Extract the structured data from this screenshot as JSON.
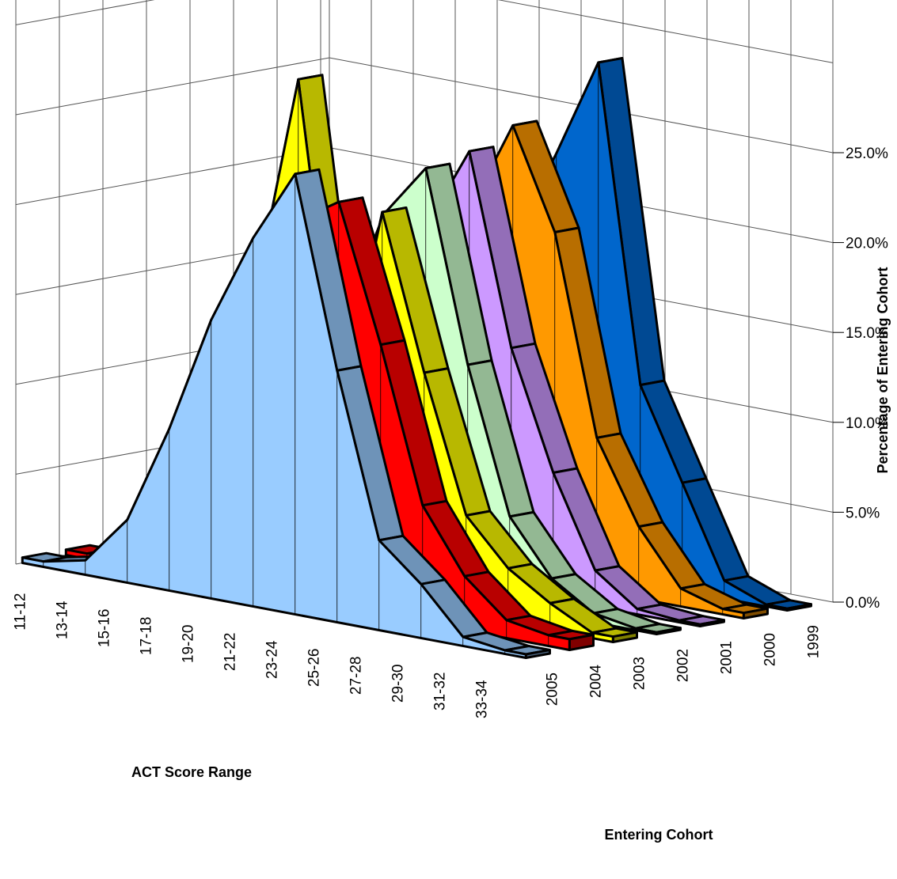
{
  "chart_data": {
    "type": "area",
    "title": "",
    "xlabel": "ACT Score Range",
    "zlabel": "Entering Cohort",
    "ylabel": "Percentage of Entering Cohort",
    "categories": [
      "11-12",
      "13-14",
      "15-16",
      "17-18",
      "19-20",
      "21-22",
      "23-24",
      "25-26",
      "27-28",
      "29-30",
      "31-32",
      "33-34"
    ],
    "y_ticks": [
      "0.0%",
      "5.0%",
      "10.0%",
      "15.0%",
      "20.0%",
      "25.0%"
    ],
    "ylim": [
      0,
      25
    ],
    "grid": true,
    "legend": "none",
    "series": [
      {
        "name": "2005",
        "color": "#99ccff",
        "values": [
          0.3,
          0.8,
          3.5,
          9.0,
          15.5,
          20.5,
          24.5,
          14.0,
          5.0,
          3.0,
          0.5,
          0.2
        ]
      },
      {
        "name": "2004",
        "color": "#ff0000",
        "values": [
          0.3,
          1.0,
          4.0,
          9.5,
          16.0,
          21.0,
          22.5,
          15.0,
          6.5,
          3.0,
          1.0,
          0.6
        ]
      },
      {
        "name": "2003",
        "color": "#ffff00",
        "values": [
          0.2,
          1.2,
          6.5,
          16.0,
          28.0,
          10.0,
          21.5,
          13.0,
          5.5,
          3.0,
          1.5,
          0.3
        ]
      },
      {
        "name": "2002",
        "color": "#ccffcc",
        "values": [
          0.1,
          0.5,
          3.0,
          8.0,
          14.0,
          20.5,
          23.5,
          13.0,
          5.0,
          2.0,
          0.5,
          0.1
        ]
      },
      {
        "name": "2001",
        "color": "#cc99ff",
        "values": [
          0.1,
          0.5,
          2.5,
          7.0,
          13.0,
          19.5,
          24.0,
          13.5,
          7.0,
          2.0,
          0.3,
          0.1
        ]
      },
      {
        "name": "2000",
        "color": "#ff9900",
        "values": [
          0.2,
          0.4,
          2.0,
          6.0,
          12.0,
          20.0,
          25.0,
          19.5,
          8.5,
          4.0,
          1.0,
          0.3
        ]
      },
      {
        "name": "1999",
        "color": "#0066cc",
        "values": [
          0.1,
          0.3,
          1.5,
          5.5,
          11.0,
          18.0,
          23.0,
          28.5,
          11.0,
          6.0,
          1.0,
          0.1
        ]
      }
    ]
  }
}
